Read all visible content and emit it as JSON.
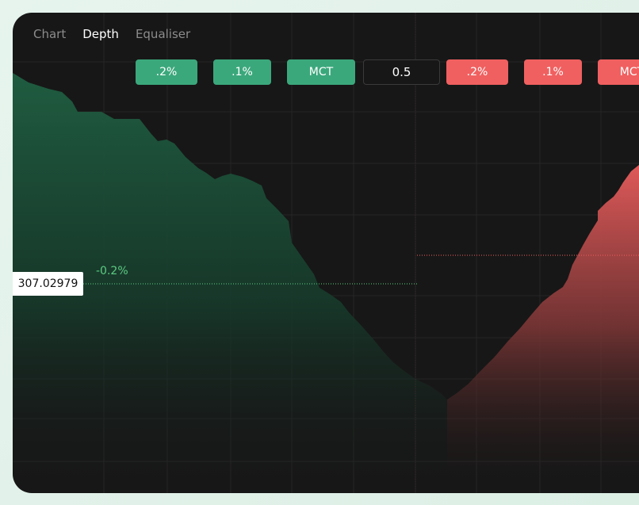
{
  "tabs": [
    {
      "label": "Chart",
      "active": false
    },
    {
      "label": "Depth",
      "active": true
    },
    {
      "label": "Equaliser",
      "active": false
    }
  ],
  "bid_buttons": [
    ".2%",
    ".1%",
    "MCT"
  ],
  "amount_value": "0.5",
  "ask_buttons": [
    ".2%",
    ".1%",
    "MCT"
  ],
  "price_marker": {
    "value": "307.02979",
    "change": "-0.2%"
  },
  "colors": {
    "bid": "#3ba87c",
    "ask": "#f06060",
    "panel": "#171717",
    "change_text": "#5ccc82"
  }
}
